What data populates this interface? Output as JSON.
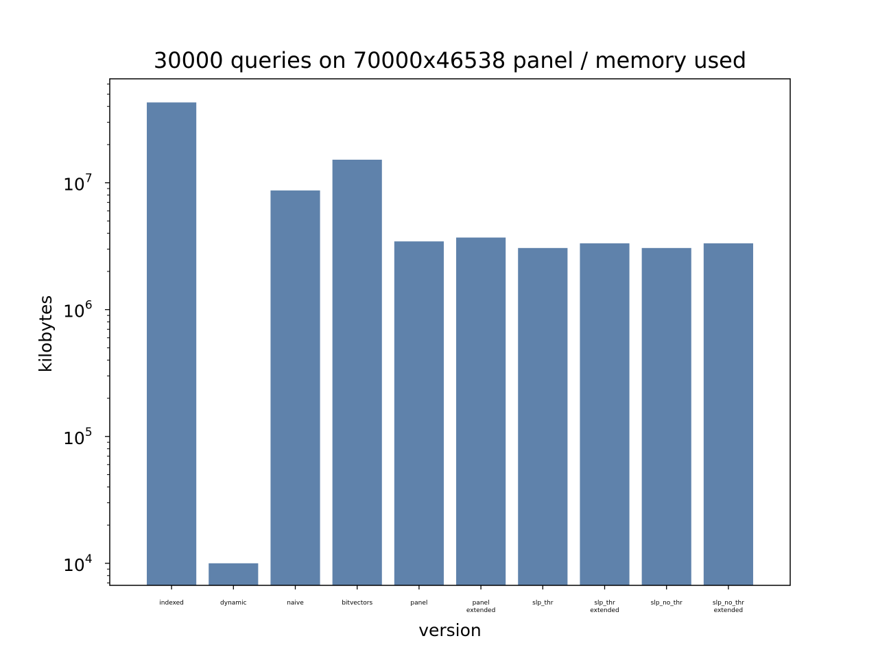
{
  "chart_data": {
    "type": "bar",
    "title": "30000 queries on 70000x46538 panel / memory used",
    "xlabel": "version",
    "ylabel": "kilobytes",
    "yscale": "log",
    "ylim": [
      6700,
      66000000
    ],
    "ytick_labels": [
      {
        "value": 10000,
        "base": "10",
        "exp": "4"
      },
      {
        "value": 100000,
        "base": "10",
        "exp": "5"
      },
      {
        "value": 1000000,
        "base": "10",
        "exp": "6"
      },
      {
        "value": 10000000,
        "base": "10",
        "exp": "7"
      }
    ],
    "categories": [
      [
        "indexed"
      ],
      [
        "dynamic"
      ],
      [
        "naive"
      ],
      [
        "bitvectors"
      ],
      [
        "panel"
      ],
      [
        "panel",
        "extended"
      ],
      [
        "slp_thr"
      ],
      [
        "slp_thr",
        "extended"
      ],
      [
        "slp_no_thr"
      ],
      [
        "slp_no_thr",
        "extended"
      ]
    ],
    "values": [
      43000000,
      10000,
      8700000,
      15200000,
      3450000,
      3700000,
      3060000,
      3330000,
      3060000,
      3330000
    ],
    "bar_color": "#5f82ab",
    "grid": false,
    "legend": "none"
  }
}
